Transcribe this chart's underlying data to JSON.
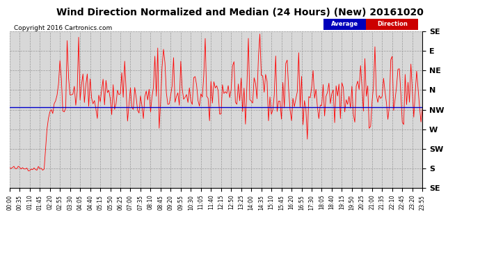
{
  "title": "Wind Direction Normalized and Median (24 Hours) (New) 20161020",
  "copyright": "Copyright 2016 Cartronics.com",
  "ytick_labels": [
    "SE",
    "E",
    "NE",
    "N",
    "NW",
    "W",
    "SW",
    "S",
    "SE"
  ],
  "ytick_values": [
    360,
    315,
    270,
    225,
    180,
    135,
    90,
    45,
    0
  ],
  "ylim": [
    0,
    360
  ],
  "xlim": [
    0,
    287
  ],
  "avg_direction_value": 185,
  "line_color": "#FF0000",
  "avg_line_color": "#0000CC",
  "bg_color": "#D8D8D8",
  "plot_bg_color": "#FFFFFF",
  "grid_color": "#999999",
  "title_fontsize": 10,
  "legend_blue_color": "#0000BB",
  "legend_red_color": "#CC0000",
  "seed": 42
}
